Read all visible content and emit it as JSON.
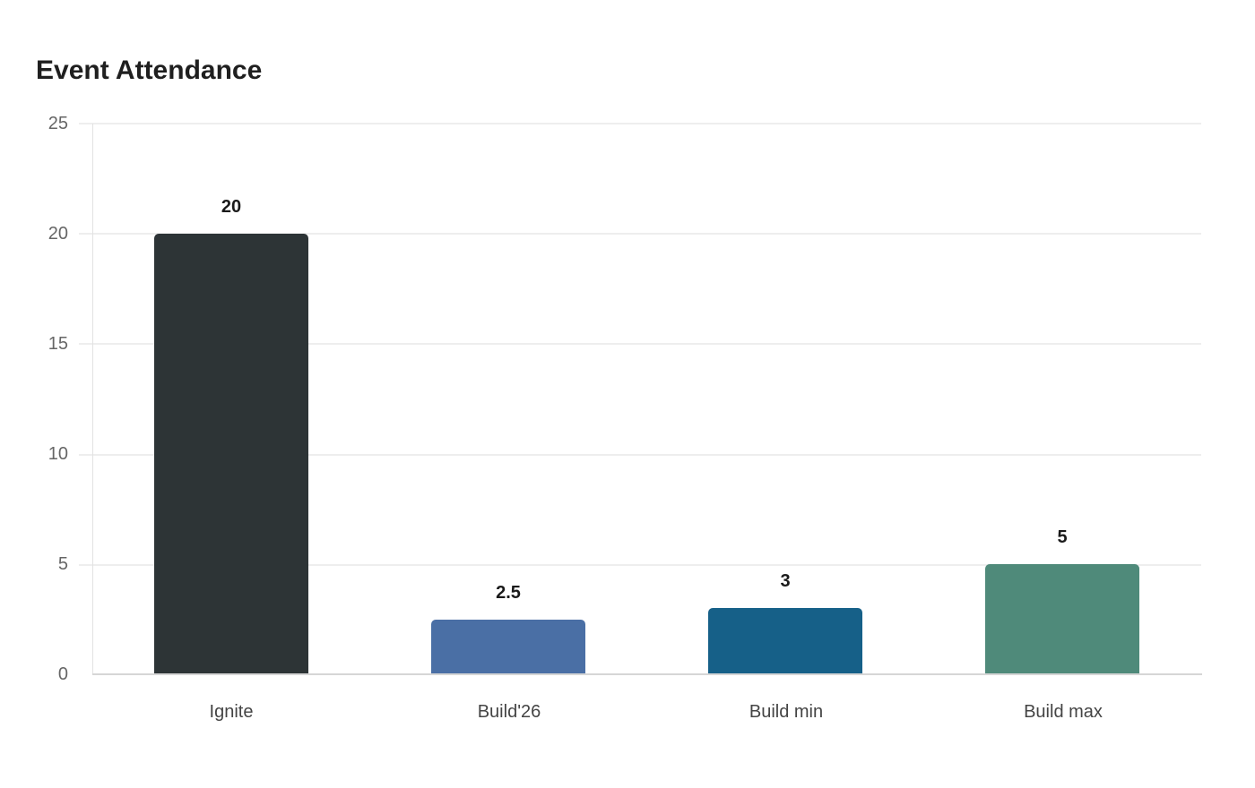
{
  "chart_data": {
    "type": "bar",
    "title": "Event Attendance",
    "xlabel": "",
    "ylabel": "",
    "categories": [
      "Ignite",
      "Build'26",
      "Build min",
      "Build max"
    ],
    "values": [
      20,
      2.5,
      3,
      5
    ],
    "data_labels": [
      "20",
      "2.5",
      "3",
      "5"
    ],
    "colors": [
      "#2d3436",
      "#4a6fa5",
      "#166088",
      "#4f8a7a"
    ],
    "ylim": [
      0,
      25
    ],
    "yticks": [
      "0",
      "5",
      "10",
      "15",
      "20",
      "25"
    ],
    "grid": true,
    "legend": null
  }
}
